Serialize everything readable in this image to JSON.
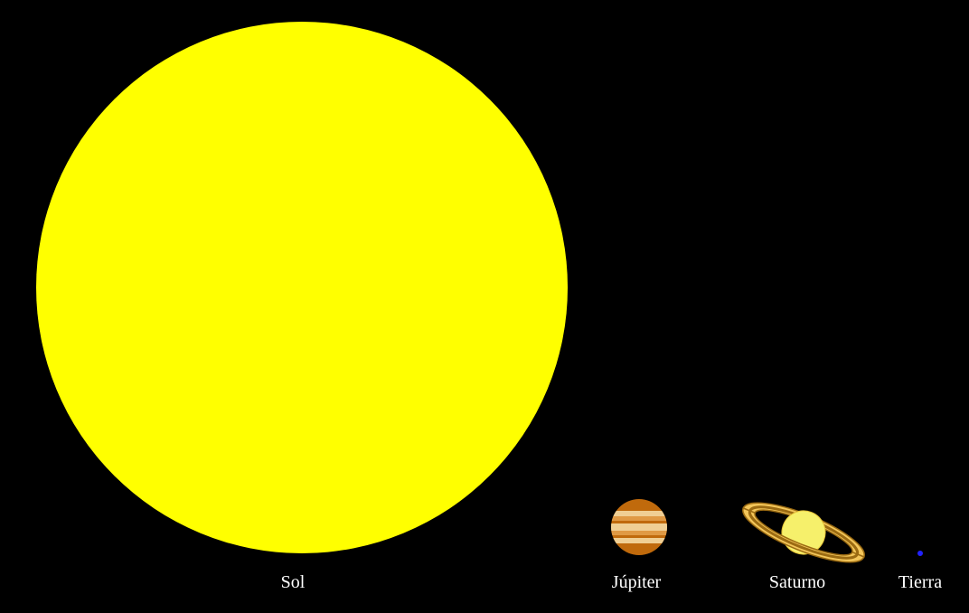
{
  "bodies": {
    "sun": {
      "label": "Sol",
      "color": "#ffff00"
    },
    "jupiter": {
      "label": "Júpiter",
      "colors": {
        "dark": "#c06a0c",
        "light": "#f0cf94",
        "mid": "#e09a45"
      }
    },
    "saturn": {
      "label": "Saturno",
      "colors": {
        "globe": "#f6f06b",
        "ring_light": "#f3c65a",
        "ring_dark": "#9b6b12",
        "ring_edge": "#e6a83a"
      }
    },
    "earth": {
      "label": "Tierra",
      "color": "#2222ff"
    }
  },
  "background": "#000000"
}
